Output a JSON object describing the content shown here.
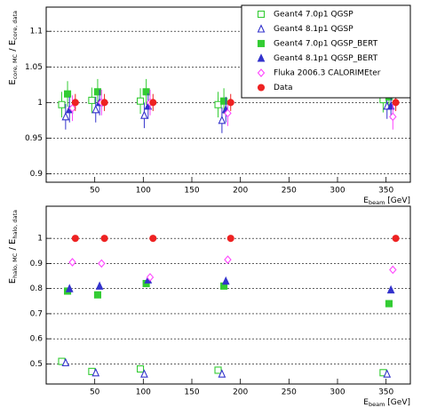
{
  "chart_data": [
    {
      "type": "scatter",
      "y_label": [
        "E",
        "core, MC",
        " / E",
        "core, data"
      ],
      "x_label": [
        "E",
        "beam",
        " [GeV]"
      ],
      "xlim": [
        0,
        375
      ],
      "xticks": [
        50,
        100,
        150,
        200,
        250,
        300,
        350
      ],
      "ylim": [
        0.888,
        1.134
      ],
      "yticks": [
        0.9,
        0.95,
        1,
        1.05,
        1.1
      ],
      "grid": "y",
      "legend": "top right",
      "series": [
        {
          "name": "Geant4 7.0p1 QGSP",
          "color": "#33cc33",
          "marker": "square",
          "filled": false,
          "x": [
            16,
            47,
            97,
            177,
            347
          ],
          "values": [
            0.997,
            1.003,
            1.002,
            0.997,
            1.004
          ],
          "errors": [
            0.018,
            0.018,
            0.018,
            0.018,
            0.018
          ]
        },
        {
          "name": "Geant4 8.1p1 QGSP",
          "color": "#3333cc",
          "marker": "triangle",
          "filled": false,
          "x": [
            20,
            51,
            101,
            181,
            351
          ],
          "values": [
            0.98,
            0.99,
            0.982,
            0.975,
            0.995
          ],
          "errors": [
            0.018,
            0.018,
            0.018,
            0.018,
            0.018
          ]
        },
        {
          "name": "Geant4 7.0p1 QGSP_BERT",
          "color": "#33cc33",
          "marker": "square",
          "filled": true,
          "x": [
            22,
            53,
            103,
            183,
            353
          ],
          "values": [
            1.012,
            1.015,
            1.015,
            1.002,
            1.008
          ],
          "errors": [
            0.018,
            0.018,
            0.018,
            0.018,
            0.018
          ]
        },
        {
          "name": "Geant4 8.1p1 QGSP_BERT",
          "color": "#3333cc",
          "marker": "triangle",
          "filled": true,
          "x": [
            24,
            55,
            105,
            185,
            355
          ],
          "values": [
            0.99,
            1.0,
            0.995,
            0.99,
            0.995
          ],
          "errors": [
            0.018,
            0.018,
            0.018,
            0.018,
            0.018
          ]
        },
        {
          "name": "Fluka 2006.3 CALORIMEter",
          "color": "#ff44ff",
          "marker": "diamond",
          "filled": false,
          "x": [
            27,
            57,
            107,
            187,
            357
          ],
          "values": [
            0.992,
            1.0,
            1.0,
            0.985,
            0.98
          ],
          "errors": [
            0.018,
            0.018,
            0.018,
            0.018,
            0.018
          ]
        },
        {
          "name": "Data",
          "color": "#ee2222",
          "marker": "circle",
          "filled": true,
          "x": [
            30,
            60,
            110,
            190,
            360
          ],
          "values": [
            1.0,
            1.0,
            1.0,
            1.0,
            1.0
          ],
          "errors": [
            0.012,
            0.012,
            0.012,
            0.012,
            0.012
          ]
        }
      ]
    },
    {
      "type": "scatter",
      "y_label": [
        "E",
        "halo, MC",
        " / E",
        "halo, data"
      ],
      "x_label": [
        "E",
        "beam",
        " [GeV]"
      ],
      "xlim": [
        0,
        375
      ],
      "xticks": [
        50,
        100,
        150,
        200,
        250,
        300,
        350
      ],
      "ylim": [
        0.42,
        1.128
      ],
      "yticks": [
        0.5,
        0.6,
        0.7,
        0.8,
        0.9,
        1
      ],
      "grid": "y",
      "series": [
        {
          "color": "#33cc33",
          "marker": "square",
          "filled": false,
          "x": [
            16,
            47,
            97,
            177,
            347
          ],
          "values": [
            0.51,
            0.47,
            0.48,
            0.475,
            0.465
          ],
          "errors": [
            0.008,
            0.008,
            0.008,
            0.008,
            0.008
          ]
        },
        {
          "color": "#3333cc",
          "marker": "triangle",
          "filled": false,
          "x": [
            20,
            51,
            101,
            181,
            351
          ],
          "values": [
            0.505,
            0.465,
            0.46,
            0.46,
            0.46
          ],
          "errors": [
            0.008,
            0.008,
            0.008,
            0.008,
            0.008
          ]
        },
        {
          "color": "#33cc33",
          "marker": "square",
          "filled": true,
          "x": [
            22,
            53,
            103,
            183,
            353
          ],
          "values": [
            0.79,
            0.775,
            0.82,
            0.81,
            0.74
          ],
          "errors": [
            0.01,
            0.01,
            0.01,
            0.01,
            0.01
          ]
        },
        {
          "color": "#3333cc",
          "marker": "triangle",
          "filled": true,
          "x": [
            24,
            55,
            105,
            185,
            355
          ],
          "values": [
            0.8,
            0.81,
            0.835,
            0.83,
            0.795
          ],
          "errors": [
            0.01,
            0.01,
            0.01,
            0.01,
            0.01
          ]
        },
        {
          "color": "#ff44ff",
          "marker": "diamond",
          "filled": false,
          "x": [
            27,
            57,
            107,
            187,
            357
          ],
          "values": [
            0.905,
            0.9,
            0.845,
            0.915,
            0.875
          ],
          "errors": [
            0.01,
            0.01,
            0.01,
            0.01,
            0.01
          ]
        },
        {
          "color": "#ee2222",
          "marker": "circle",
          "filled": true,
          "x": [
            30,
            60,
            110,
            190,
            360
          ],
          "values": [
            1.0,
            1.0,
            1.0,
            1.0,
            1.0
          ],
          "errors": [
            0.012,
            0.012,
            0.012,
            0.012,
            0.012
          ]
        }
      ]
    }
  ]
}
